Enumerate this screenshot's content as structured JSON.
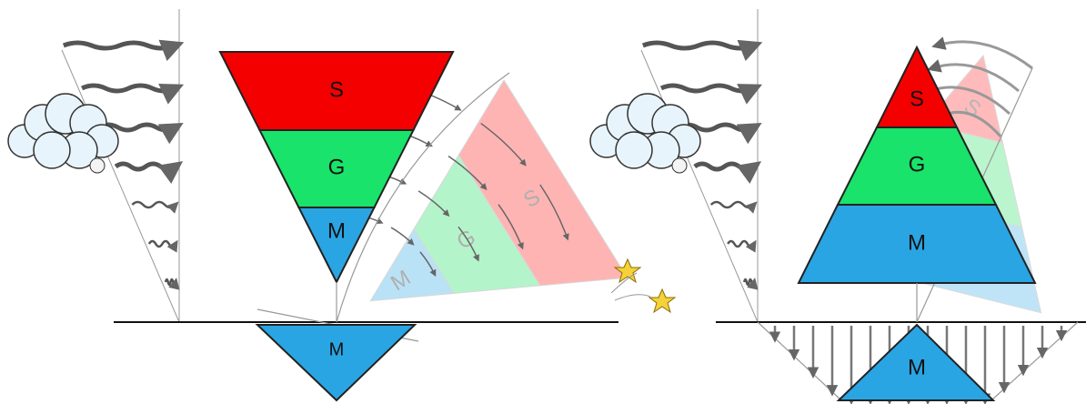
{
  "left": {
    "layers": [
      "S",
      "G",
      "M"
    ],
    "root": "M",
    "ghost_layers": [
      "M",
      "G",
      "S"
    ]
  },
  "right": {
    "layers": [
      "S",
      "G",
      "M"
    ],
    "root": "M",
    "ghost_layers": [
      "S"
    ]
  }
}
